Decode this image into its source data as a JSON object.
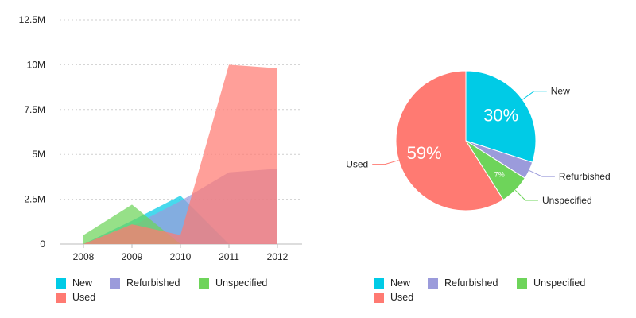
{
  "chart_data": [
    {
      "type": "area",
      "categories": [
        "2008",
        "2009",
        "2010",
        "2011",
        "2012"
      ],
      "yticks": [
        "0",
        "2.5M",
        "5M",
        "7.5M",
        "10M",
        "12.5M"
      ],
      "ylim": [
        0,
        12500000
      ],
      "grid": true,
      "legend_position": "bottom",
      "series": [
        {
          "name": "New",
          "color": "#00CBE6",
          "values": [
            0,
            1300000,
            2700000,
            0,
            0
          ]
        },
        {
          "name": "Refurbished",
          "color": "#9B9BDB",
          "values": [
            0,
            1000000,
            2400000,
            4000000,
            4200000
          ]
        },
        {
          "name": "Unspecified",
          "color": "#6ED45A",
          "values": [
            500000,
            2200000,
            0,
            0,
            0
          ]
        },
        {
          "name": "Used",
          "color": "#FF7A72",
          "values": [
            0,
            1100000,
            500000,
            10000000,
            9800000
          ]
        }
      ]
    },
    {
      "type": "pie",
      "legend_position": "bottom",
      "slices": [
        {
          "name": "New",
          "color": "#00CBE6",
          "value": 30,
          "label": "30%"
        },
        {
          "name": "Refurbished",
          "color": "#9B9BDB",
          "value": 4,
          "label": ""
        },
        {
          "name": "Unspecified",
          "color": "#6ED45A",
          "value": 7,
          "label": "7%"
        },
        {
          "name": "Used",
          "color": "#FF7A72",
          "value": 59,
          "label": "59%"
        }
      ]
    }
  ]
}
